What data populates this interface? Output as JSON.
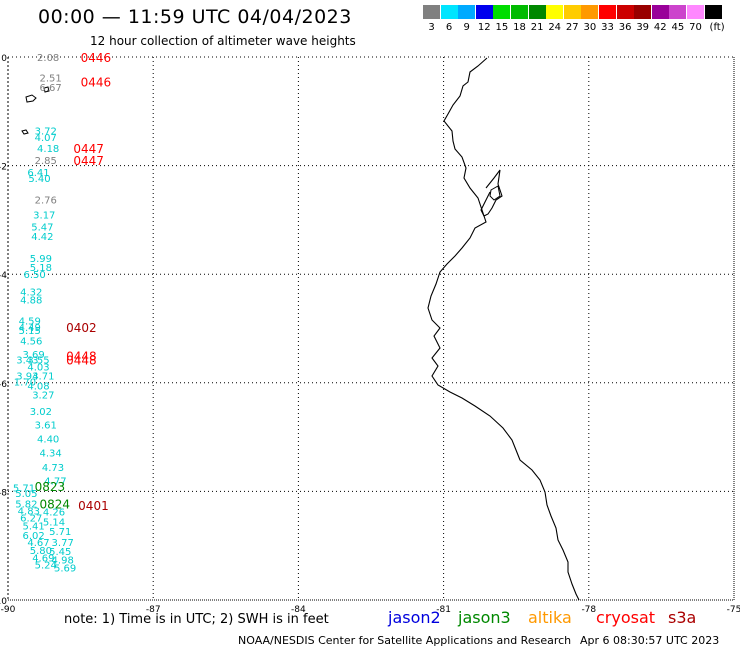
{
  "header": {
    "title": "00:00 — 11:59 UTC 04/04/2023",
    "subtitle": "12 hour collection of altimeter wave heights"
  },
  "legend": {
    "colors": [
      "#808080",
      "#00e5ff",
      "#00aaff",
      "#0000ee",
      "#00dd00",
      "#00bb00",
      "#008800",
      "#ffff00",
      "#ffcc00",
      "#ff9900",
      "#ff0000",
      "#cc0000",
      "#990000",
      "#990099",
      "#cc44cc",
      "#ff88ff",
      "#000000"
    ],
    "ticks": [
      "3",
      "6",
      "9",
      "12",
      "15",
      "18",
      "21",
      "24",
      "27",
      "30",
      "33",
      "36",
      "39",
      "42",
      "45",
      "70",
      "(ft)"
    ]
  },
  "map": {
    "lon_ticks": [
      "-90",
      "-87",
      "-84",
      "-81",
      "-78",
      "-75"
    ],
    "lat_ticks": [
      "0",
      "-2",
      "-4",
      "-6",
      "-8",
      "-10"
    ],
    "lon_range": [
      -90,
      -75
    ],
    "lat_range": [
      -10,
      0
    ]
  },
  "observations": [
    {
      "v": "2.08",
      "c": "#808080",
      "lon": -89.4,
      "lat": 0.0
    },
    {
      "v": "2.51",
      "c": "#808080",
      "lon": -89.35,
      "lat": -0.38
    },
    {
      "v": "6.67",
      "c": "#808080",
      "lon": -89.35,
      "lat": -0.55
    },
    {
      "v": "3.72",
      "c": "#00cccc",
      "lon": -89.45,
      "lat": -1.35
    },
    {
      "v": "4.07",
      "c": "#00cccc",
      "lon": -89.45,
      "lat": -1.47
    },
    {
      "v": "4.18",
      "c": "#00cccc",
      "lon": -89.4,
      "lat": -1.68
    },
    {
      "v": "2.85",
      "c": "#808080",
      "lon": -89.45,
      "lat": -1.9
    },
    {
      "v": "6.41",
      "c": "#00cccc",
      "lon": -89.6,
      "lat": -2.12
    },
    {
      "v": "5.40",
      "c": "#00cccc",
      "lon": -89.58,
      "lat": -2.23
    },
    {
      "v": "2.76",
      "c": "#808080",
      "lon": -89.45,
      "lat": -2.62
    },
    {
      "v": "3.17",
      "c": "#00cccc",
      "lon": -89.48,
      "lat": -2.9
    },
    {
      "v": "5.47",
      "c": "#00cccc",
      "lon": -89.52,
      "lat": -3.12
    },
    {
      "v": "4.42",
      "c": "#00cccc",
      "lon": -89.52,
      "lat": -3.3
    },
    {
      "v": "5.99",
      "c": "#00cccc",
      "lon": -89.55,
      "lat": -3.7
    },
    {
      "v": "5.18",
      "c": "#00cccc",
      "lon": -89.55,
      "lat": -3.87
    },
    {
      "v": "6.50",
      "c": "#00cccc",
      "lon": -89.68,
      "lat": -4.0
    },
    {
      "v": "4.32",
      "c": "#00cccc",
      "lon": -89.75,
      "lat": -4.32
    },
    {
      "v": "4.88",
      "c": "#00cccc",
      "lon": -89.75,
      "lat": -4.47
    },
    {
      "v": "4.59",
      "c": "#00cccc",
      "lon": -89.78,
      "lat": -4.85
    },
    {
      "v": "4.49",
      "c": "#00cccc",
      "lon": -89.78,
      "lat": -4.97
    },
    {
      "v": "5.15",
      "c": "#00cccc",
      "lon": -89.78,
      "lat": -5.03
    },
    {
      "v": "4.56",
      "c": "#00cccc",
      "lon": -89.75,
      "lat": -5.22
    },
    {
      "v": "3.69",
      "c": "#00cccc",
      "lon": -89.7,
      "lat": -5.47
    },
    {
      "v": "3.43",
      "c": "#00cccc",
      "lon": -89.83,
      "lat": -5.57
    },
    {
      "v": "3.55",
      "c": "#00cccc",
      "lon": -89.6,
      "lat": -5.57
    },
    {
      "v": "4.03",
      "c": "#00cccc",
      "lon": -89.6,
      "lat": -5.7
    },
    {
      "v": "3.93",
      "c": "#00cccc",
      "lon": -89.83,
      "lat": -5.87
    },
    {
      "v": "4.71",
      "c": "#00cccc",
      "lon": -89.5,
      "lat": -5.87
    },
    {
      "v": "1.70",
      "c": "#00cccc",
      "lon": -89.88,
      "lat": -5.98
    },
    {
      "v": "4.08",
      "c": "#00cccc",
      "lon": -89.6,
      "lat": -6.05
    },
    {
      "v": "3.27",
      "c": "#00cccc",
      "lon": -89.5,
      "lat": -6.22
    },
    {
      "v": "3.02",
      "c": "#00cccc",
      "lon": -89.55,
      "lat": -6.52
    },
    {
      "v": "3.61",
      "c": "#00cccc",
      "lon": -89.45,
      "lat": -6.77
    },
    {
      "v": "4.40",
      "c": "#00cccc",
      "lon": -89.4,
      "lat": -7.03
    },
    {
      "v": "4.34",
      "c": "#00cccc",
      "lon": -89.35,
      "lat": -7.28
    },
    {
      "v": "4.73",
      "c": "#00cccc",
      "lon": -89.3,
      "lat": -7.55
    },
    {
      "v": "4.77",
      "c": "#00cccc",
      "lon": -89.25,
      "lat": -7.8
    },
    {
      "v": "5.71",
      "c": "#00cccc",
      "lon": -89.9,
      "lat": -7.93
    },
    {
      "v": "5.05",
      "c": "#00cccc",
      "lon": -89.85,
      "lat": -8.03
    },
    {
      "v": "5.82",
      "c": "#00cccc",
      "lon": -89.85,
      "lat": -8.22
    },
    {
      "v": "4.83",
      "c": "#00cccc",
      "lon": -89.8,
      "lat": -8.35
    },
    {
      "v": "4.26",
      "c": "#00cccc",
      "lon": -89.28,
      "lat": -8.37
    },
    {
      "v": "6.27",
      "c": "#00cccc",
      "lon": -89.75,
      "lat": -8.48
    },
    {
      "v": "5.14",
      "c": "#00cccc",
      "lon": -89.28,
      "lat": -8.55
    },
    {
      "v": "5.41",
      "c": "#00cccc",
      "lon": -89.7,
      "lat": -8.63
    },
    {
      "v": "6.02",
      "c": "#00cccc",
      "lon": -89.7,
      "lat": -8.8
    },
    {
      "v": "5.71",
      "c": "#00cccc",
      "lon": -89.15,
      "lat": -8.73
    },
    {
      "v": "4.67",
      "c": "#00cccc",
      "lon": -89.6,
      "lat": -8.93
    },
    {
      "v": "3.77",
      "c": "#00cccc",
      "lon": -89.1,
      "lat": -8.93
    },
    {
      "v": "5.80",
      "c": "#00cccc",
      "lon": -89.55,
      "lat": -9.08
    },
    {
      "v": "5.45",
      "c": "#00cccc",
      "lon": -89.15,
      "lat": -9.1
    },
    {
      "v": "4.69",
      "c": "#00cccc",
      "lon": -89.5,
      "lat": -9.22
    },
    {
      "v": "4.98",
      "c": "#00cccc",
      "lon": -89.1,
      "lat": -9.25
    },
    {
      "v": "5.24",
      "c": "#00cccc",
      "lon": -89.45,
      "lat": -9.35
    },
    {
      "v": "5.69",
      "c": "#00cccc",
      "lon": -89.05,
      "lat": -9.4
    }
  ],
  "passes": [
    {
      "t": "0446",
      "c": "#ff0000",
      "lon": -88.5,
      "lat": 0.0
    },
    {
      "t": "0446",
      "c": "#ff0000",
      "lon": -88.5,
      "lat": -0.45
    },
    {
      "t": "0447",
      "c": "#ff0000",
      "lon": -88.65,
      "lat": -1.68
    },
    {
      "t": "0447",
      "c": "#ff0000",
      "lon": -88.65,
      "lat": -1.9
    },
    {
      "t": "0402",
      "c": "#aa0000",
      "lon": -88.8,
      "lat": -4.97
    },
    {
      "t": "0448",
      "c": "#ff0000",
      "lon": -88.8,
      "lat": -5.5
    },
    {
      "t": "0448",
      "c": "#ff0000",
      "lon": -88.8,
      "lat": -5.57
    },
    {
      "t": "0823",
      "c": "#008800",
      "lon": -89.45,
      "lat": -7.9
    },
    {
      "t": "0824",
      "c": "#008800",
      "lon": -89.35,
      "lat": -8.22
    },
    {
      "t": "0401",
      "c": "#aa0000",
      "lon": -88.55,
      "lat": -8.25
    }
  ],
  "note": "note: 1) Time is in UTC; 2) SWH is in feet",
  "satellites": [
    {
      "name": "jason2",
      "color": "#0000dd"
    },
    {
      "name": "jason3",
      "color": "#008800"
    },
    {
      "name": "altika",
      "color": "#ff9900"
    },
    {
      "name": "cryosat",
      "color": "#ff0000"
    },
    {
      "name": "s3a",
      "color": "#aa0000"
    }
  ],
  "footer": {
    "credit": "NOAA/NESDIS Center for Satellite Applications and Research",
    "generated": "Apr  6 08:30:57 UTC 2023"
  }
}
